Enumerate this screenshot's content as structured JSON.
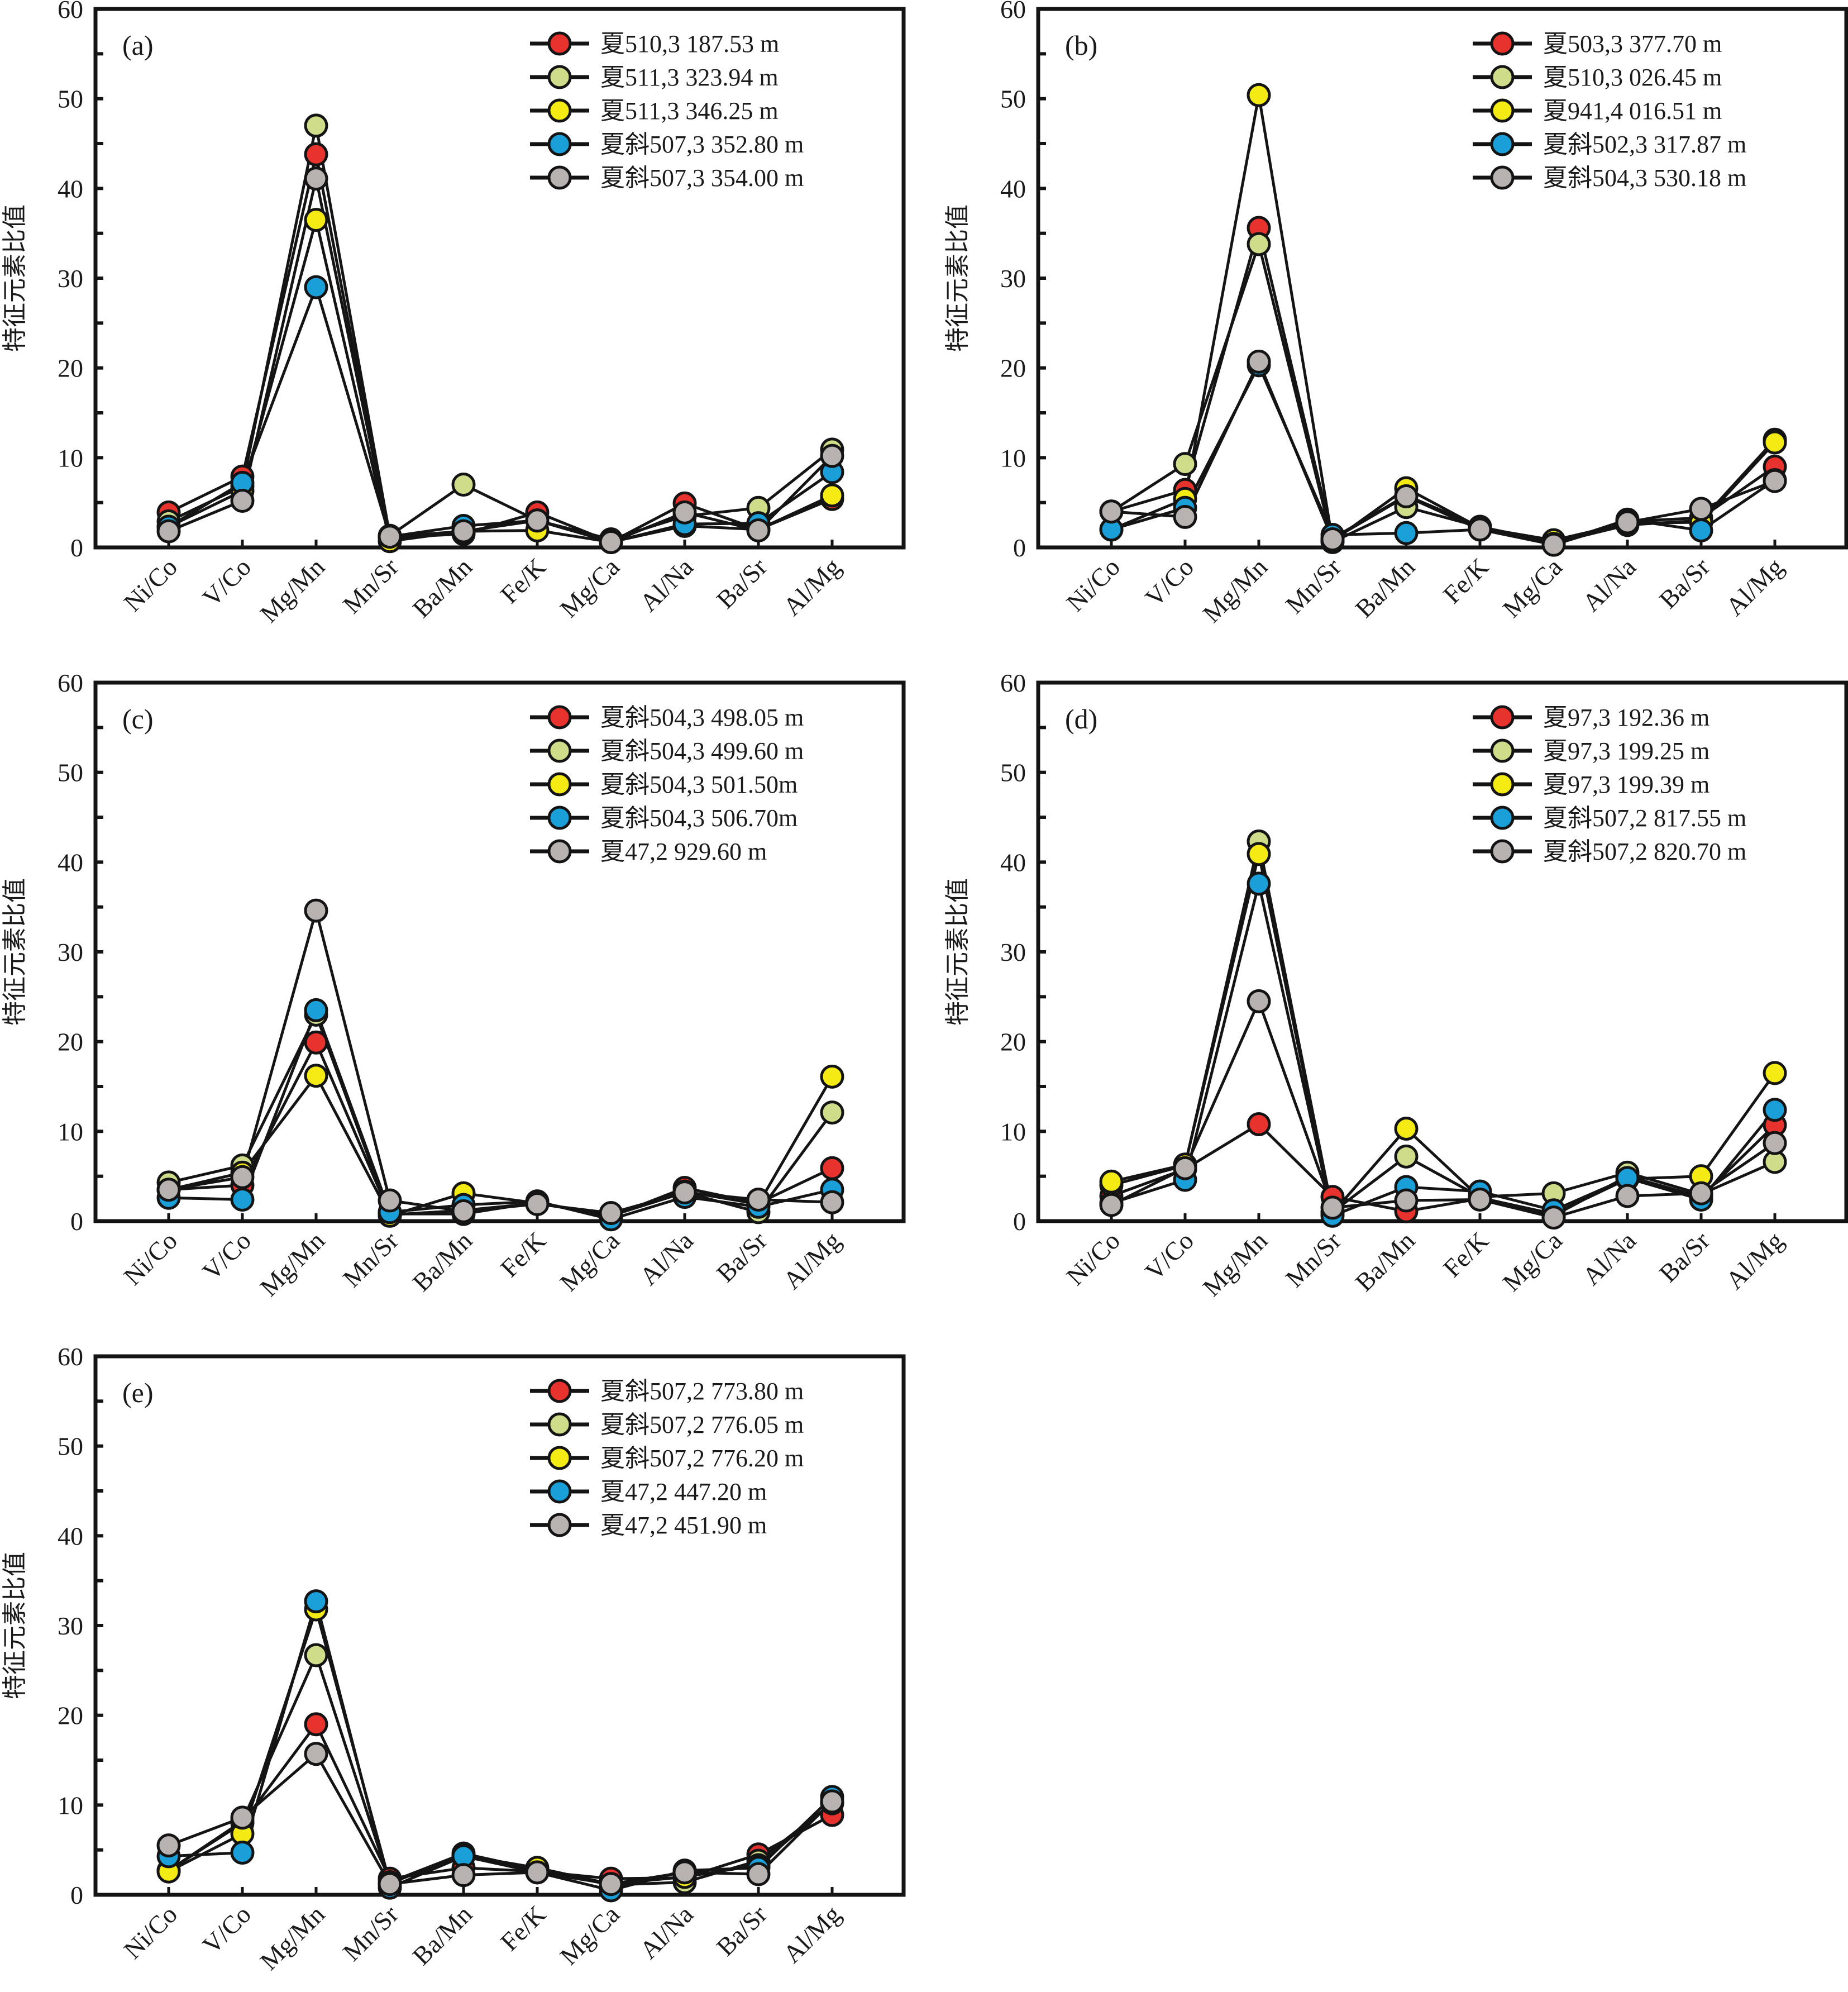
{
  "figure": {
    "ylabel": "特征元素比值"
  },
  "chart_data": [
    {
      "panel": "(a)",
      "type": "line",
      "categories": [
        "Ni/Co",
        "V/Co",
        "Mg/Mn",
        "Mn/Sr",
        "Ba/Mn",
        "Fe/K",
        "Mg/Ca",
        "Al/Na",
        "Ba/Sr",
        "Al/Mg"
      ],
      "ylabel": "特征元素比值",
      "ylim": [
        0,
        60
      ],
      "yticks": [
        0,
        10,
        20,
        30,
        40,
        50,
        60
      ],
      "legend_position": "top-right",
      "series": [
        {
          "name": "夏510,3 187.53 m",
          "color": "#e8322e",
          "values": [
            3.9,
            7.9,
            43.8,
            1.1,
            1.5,
            3.9,
            0.6,
            4.9,
            2.0,
            5.4
          ]
        },
        {
          "name": "夏511,3 323.94 m",
          "color": "#cfdc8a",
          "values": [
            2.9,
            6.8,
            47.0,
            1.3,
            7.0,
            3.0,
            0.9,
            3.5,
            4.4,
            10.9
          ]
        },
        {
          "name": "夏511,3 346.25 m",
          "color": "#f5eb14",
          "values": [
            2.3,
            6.3,
            36.5,
            0.7,
            1.8,
            1.9,
            0.6,
            2.4,
            2.0,
            5.8
          ]
        },
        {
          "name": "夏斜507,3 352.80 m",
          "color": "#1a9fd9",
          "values": [
            2.3,
            7.2,
            29.0,
            1.2,
            2.4,
            3.0,
            0.6,
            2.6,
            2.7,
            8.4
          ]
        },
        {
          "name": "夏斜507,3 354.00 m",
          "color": "#b8b2b0",
          "values": [
            1.8,
            5.2,
            41.1,
            1.2,
            1.8,
            3.0,
            0.6,
            3.9,
            1.9,
            10.2
          ]
        }
      ]
    },
    {
      "panel": "(b)",
      "type": "line",
      "categories": [
        "Ni/Co",
        "V/Co",
        "Mg/Mn",
        "Mn/Sr",
        "Ba/Mn",
        "Fe/K",
        "Mg/Ca",
        "Al/Na",
        "Ba/Sr",
        "Al/Mg"
      ],
      "ylabel": "特征元素比值",
      "ylim": [
        0,
        60
      ],
      "yticks": [
        0,
        10,
        20,
        30,
        40,
        50,
        60
      ],
      "legend_position": "top-right",
      "series": [
        {
          "name": "夏503,3 377.70 m",
          "color": "#e8322e",
          "values": [
            4.0,
            6.4,
            35.6,
            1.0,
            5.8,
            2.3,
            0.6,
            2.9,
            3.3,
            9.0
          ]
        },
        {
          "name": "夏510,3 026.45 m",
          "color": "#cfdc8a",
          "values": [
            4.0,
            9.3,
            33.8,
            0.6,
            4.5,
            2.3,
            0.5,
            2.5,
            3.0,
            12.0
          ]
        },
        {
          "name": "夏941,4 016.51 m",
          "color": "#f5eb14",
          "values": [
            2.0,
            5.4,
            50.4,
            0.7,
            6.6,
            2.2,
            0.8,
            2.7,
            2.8,
            11.7
          ]
        },
        {
          "name": "夏斜502,3 317.87 m",
          "color": "#1a9fd9",
          "values": [
            2.0,
            4.4,
            20.3,
            1.4,
            1.6,
            2.0,
            0.4,
            3.1,
            1.9,
            7.5
          ]
        },
        {
          "name": "夏斜504,3 530.18 m",
          "color": "#b8b2b0",
          "values": [
            4.0,
            3.4,
            20.7,
            0.9,
            5.7,
            2.0,
            0.3,
            2.8,
            4.3,
            7.4
          ]
        }
      ]
    },
    {
      "panel": "(c)",
      "type": "line",
      "categories": [
        "Ni/Co",
        "V/Co",
        "Mg/Mn",
        "Mn/Sr",
        "Ba/Mn",
        "Fe/K",
        "Mg/Ca",
        "Al/Na",
        "Ba/Sr",
        "Al/Mg"
      ],
      "ylabel": "特征元素比值",
      "ylim": [
        0,
        60
      ],
      "yticks": [
        0,
        10,
        20,
        30,
        40,
        50,
        60
      ],
      "legend_position": "top-right",
      "series": [
        {
          "name": "夏斜504,3 498.05 m",
          "color": "#e8322e",
          "values": [
            3.5,
            4.0,
            19.9,
            0.8,
            0.8,
            2.1,
            0.5,
            3.7,
            2.0,
            5.9
          ]
        },
        {
          "name": "夏斜504,3 499.60 m",
          "color": "#cfdc8a",
          "values": [
            4.3,
            6.2,
            23.0,
            0.7,
            1.2,
            2.0,
            0.6,
            3.2,
            1.0,
            12.1
          ]
        },
        {
          "name": "夏斜504,3 501.50m",
          "color": "#f5eb14",
          "values": [
            3.5,
            5.4,
            16.2,
            0.6,
            3.1,
            2.0,
            0.6,
            3.3,
            1.9,
            16.1
          ]
        },
        {
          "name": "夏斜504,3 506.70m",
          "color": "#1a9fd9",
          "values": [
            2.6,
            2.4,
            23.5,
            1.0,
            1.8,
            2.2,
            0.2,
            2.7,
            1.6,
            3.5
          ]
        },
        {
          "name": "夏47,2 929.60 m",
          "color": "#b8b2b0",
          "values": [
            3.5,
            4.9,
            34.6,
            2.3,
            1.1,
            1.9,
            0.9,
            3.2,
            2.4,
            2.1
          ]
        }
      ]
    },
    {
      "panel": "(d)",
      "type": "line",
      "categories": [
        "Ni/Co",
        "V/Co",
        "Mg/Mn",
        "Mn/Sr",
        "Ba/Mn",
        "Fe/K",
        "Mg/Ca",
        "Al/Na",
        "Ba/Sr",
        "Al/Mg"
      ],
      "ylabel": "特征元素比值",
      "ylim": [
        0,
        60
      ],
      "yticks": [
        0,
        10,
        20,
        30,
        40,
        50,
        60
      ],
      "legend_position": "top-right",
      "series": [
        {
          "name": "夏97,3 192.36 m",
          "color": "#e8322e",
          "values": [
            2.8,
            5.8,
            10.8,
            2.7,
            1.1,
            2.5,
            0.6,
            5.0,
            2.7,
            10.7
          ]
        },
        {
          "name": "夏97,3 199.25 m",
          "color": "#cfdc8a",
          "values": [
            4.0,
            6.2,
            42.3,
            1.0,
            7.2,
            2.7,
            3.1,
            5.4,
            3.0,
            6.6
          ]
        },
        {
          "name": "夏97,3 199.39 m",
          "color": "#f5eb14",
          "values": [
            4.4,
            6.3,
            40.9,
            0.9,
            10.3,
            2.6,
            0.8,
            4.7,
            5.0,
            16.5
          ]
        },
        {
          "name": "夏斜507,2 817.55 m",
          "color": "#1a9fd9",
          "values": [
            2.0,
            4.6,
            37.6,
            0.6,
            3.8,
            3.3,
            1.2,
            4.8,
            2.4,
            12.4
          ]
        },
        {
          "name": "夏斜507,2 820.70 m",
          "color": "#b8b2b0",
          "values": [
            1.8,
            5.9,
            24.5,
            1.5,
            2.3,
            2.4,
            0.4,
            2.8,
            3.1,
            8.7
          ]
        }
      ]
    },
    {
      "panel": "(e)",
      "type": "line",
      "categories": [
        "Ni/Co",
        "V/Co",
        "Mg/Mn",
        "Mn/Sr",
        "Ba/Mn",
        "Fe/K",
        "Mg/Ca",
        "Al/Na",
        "Ba/Sr",
        "Al/Mg"
      ],
      "ylabel": "特征元素比值",
      "ylim": [
        0,
        60
      ],
      "yticks": [
        0,
        10,
        20,
        30,
        40,
        50,
        60
      ],
      "legend_position": "top-right",
      "series": [
        {
          "name": "夏斜507,2 773.80 m",
          "color": "#e8322e",
          "values": [
            2.7,
            8.0,
            19.0,
            1.8,
            3.0,
            2.6,
            1.8,
            1.9,
            4.5,
            8.9
          ]
        },
        {
          "name": "夏斜507,2 776.05 m",
          "color": "#cfdc8a",
          "values": [
            2.7,
            8.2,
            26.7,
            1.4,
            4.6,
            2.8,
            1.1,
            1.4,
            3.8,
            10.2
          ]
        },
        {
          "name": "夏斜507,2 776.20 m",
          "color": "#f5eb14",
          "values": [
            2.6,
            6.8,
            31.8,
            1.3,
            4.4,
            3.0,
            1.2,
            2.0,
            3.3,
            10.3
          ]
        },
        {
          "name": "夏47,2 447.20 m",
          "color": "#1a9fd9",
          "values": [
            4.3,
            4.7,
            32.7,
            0.8,
            4.3,
            2.5,
            0.5,
            2.7,
            3.0,
            10.9
          ]
        },
        {
          "name": "夏47,2 451.90 m",
          "color": "#b8b2b0",
          "values": [
            5.5,
            8.6,
            15.7,
            1.2,
            2.2,
            2.5,
            1.2,
            2.5,
            2.3,
            10.4
          ]
        }
      ]
    }
  ]
}
